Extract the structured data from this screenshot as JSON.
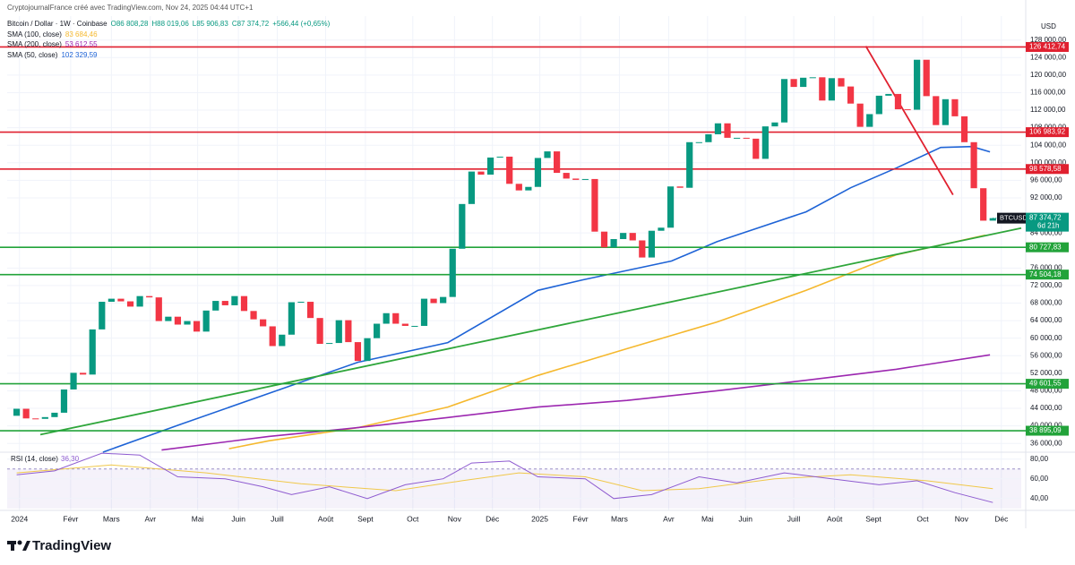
{
  "chart_data": {
    "type": "candlestick",
    "credit": "CryptojournalFrance créé avec TradingView.com, Nov 24, 2025 04:44 UTC+1",
    "title": "Bitcoin / Dollar · 1W · Coinbase",
    "ohlc_labels": [
      "O86 808,28",
      "H88 019,06",
      "L85 906,83",
      "C87 374,72"
    ],
    "change_label": "+566,44 (+0,65%)",
    "currency": "USD",
    "brand": "TradingView",
    "up_color": "#089981",
    "down_color": "#f23645",
    "grid": true,
    "open": [
      42300,
      43900,
      41700,
      41600,
      42000,
      43000,
      48300,
      52100,
      51700,
      62000,
      68300,
      69000,
      68400,
      67200,
      69600,
      69300,
      63900,
      64900,
      63100,
      63900,
      61500,
      66300,
      68500,
      67500,
      69600,
      66200,
      64300,
      62700,
      58200,
      60800,
      68200,
      68300,
      64600,
      58700,
      58900,
      64100,
      59100,
      54800,
      60000,
      63300,
      65700,
      63300,
      62800,
      62800,
      69000,
      68000,
      69400,
      80400,
      90600,
      98000,
      97300,
      101200,
      101400,
      95200,
      93700,
      94500,
      101100,
      102600,
      97700,
      96400,
      96100,
      96300,
      84300,
      80700,
      82600,
      84000,
      82300,
      78400,
      84500,
      85200,
      94600,
      94300,
      104700,
      104700,
      106500,
      109000,
      105700,
      105700,
      105500,
      100900,
      108300,
      109200,
      119100,
      117300,
      119400,
      119500,
      114200,
      119300,
      117400,
      113500,
      108200,
      111100,
      115300,
      115700,
      112200,
      112100,
      123500,
      115200,
      108600,
      114500,
      110600,
      104700,
      94200,
      86808.28
    ],
    "close": [
      43900,
      41700,
      41600,
      42000,
      43000,
      48300,
      52100,
      51700,
      62000,
      68300,
      69000,
      68400,
      67200,
      69600,
      69300,
      63900,
      64900,
      63100,
      63900,
      61500,
      66300,
      68500,
      67500,
      69600,
      66200,
      64300,
      62700,
      58200,
      60800,
      68200,
      68300,
      64600,
      58700,
      58900,
      64100,
      59100,
      54800,
      60000,
      63300,
      65700,
      63300,
      62800,
      62800,
      69000,
      68000,
      69400,
      80400,
      90600,
      98000,
      97300,
      101200,
      101400,
      95200,
      93700,
      94500,
      101100,
      102600,
      97700,
      96400,
      96100,
      96300,
      84300,
      80700,
      82600,
      84000,
      82300,
      78400,
      84500,
      85200,
      94600,
      94300,
      104700,
      104700,
      106500,
      109000,
      105700,
      105700,
      105500,
      100900,
      108300,
      109200,
      119100,
      117300,
      119400,
      119500,
      114200,
      119300,
      117400,
      113500,
      108200,
      111100,
      115300,
      115700,
      112200,
      112100,
      123500,
      115200,
      108600,
      114500,
      110600,
      104700,
      94200,
      86800,
      87374.72
    ],
    "xlim": [
      -1,
      106
    ],
    "xticks": [
      {
        "value": 0.3,
        "label": "2024"
      },
      {
        "value": 5.7,
        "label": "Févr"
      },
      {
        "value": 10,
        "label": "Mars"
      },
      {
        "value": 14.1,
        "label": "Avr"
      },
      {
        "value": 19.1,
        "label": "Mai"
      },
      {
        "value": 23.4,
        "label": "Juin"
      },
      {
        "value": 27.5,
        "label": "Juill"
      },
      {
        "value": 32.6,
        "label": "Août"
      },
      {
        "value": 36.8,
        "label": "Sept"
      },
      {
        "value": 41.8,
        "label": "Oct"
      },
      {
        "value": 46.2,
        "label": "Nov"
      },
      {
        "value": 50.2,
        "label": "Déc"
      },
      {
        "value": 55.2,
        "label": "2025"
      },
      {
        "value": 59.5,
        "label": "Févr"
      },
      {
        "value": 63.6,
        "label": "Mars"
      },
      {
        "value": 68.8,
        "label": "Avr"
      },
      {
        "value": 72.9,
        "label": "Mai"
      },
      {
        "value": 76.9,
        "label": "Juin"
      },
      {
        "value": 82,
        "label": "Juill"
      },
      {
        "value": 86.3,
        "label": "Août"
      },
      {
        "value": 90.4,
        "label": "Sept"
      },
      {
        "value": 95.6,
        "label": "Oct"
      },
      {
        "value": 99.7,
        "label": "Nov"
      },
      {
        "value": 103.9,
        "label": "Déc"
      }
    ],
    "ylim": [
      34000,
      131000
    ],
    "yticks": [
      {
        "value": 128000,
        "label": "128 000,00"
      },
      {
        "value": 124000,
        "label": "124 000,00"
      },
      {
        "value": 120000,
        "label": "120 000,00"
      },
      {
        "value": 116000,
        "label": "116 000,00"
      },
      {
        "value": 112000,
        "label": "112 000,00"
      },
      {
        "value": 108000,
        "label": "108 000,00"
      },
      {
        "value": 104000,
        "label": "104 000,00"
      },
      {
        "value": 100000,
        "label": "100 000,00"
      },
      {
        "value": 96000,
        "label": "96 000,00"
      },
      {
        "value": 92000,
        "label": "92 000,00"
      },
      {
        "value": 84000,
        "label": "84 000,00"
      },
      {
        "value": 76000,
        "label": "76 000,00"
      },
      {
        "value": 72000,
        "label": "72 000,00"
      },
      {
        "value": 68000,
        "label": "68 000,00"
      },
      {
        "value": 64000,
        "label": "64 000,00"
      },
      {
        "value": 60000,
        "label": "60 000,00"
      },
      {
        "value": 56000,
        "label": "56 000,00"
      },
      {
        "value": 52000,
        "label": "52 000,00"
      },
      {
        "value": 48000,
        "label": "48 000,00"
      },
      {
        "value": 44000,
        "label": "44 000,00"
      },
      {
        "value": 40000,
        "label": "40 000,00"
      },
      {
        "value": 36000,
        "label": "36 000,00"
      }
    ],
    "indicators": [
      {
        "name": "SMA (100, close)",
        "value_label": "83 684,46",
        "color": "#f5b82e",
        "x": [
          22.4,
          26.6,
          36,
          45.5,
          55,
          64.4,
          73.9,
          83.3,
          92.8,
          102.2
        ],
        "values": [
          34800,
          36600,
          39600,
          44300,
          51500,
          57600,
          63700,
          70900,
          79000,
          83500
        ]
      },
      {
        "name": "SMA (200, close)",
        "value_label": "53 612,55",
        "color": "#9c27b0",
        "x": [
          15.3,
          26.6,
          36,
          45.5,
          55,
          64.4,
          73.9,
          83.3,
          92.8,
          102.7
        ],
        "values": [
          34500,
          37600,
          39600,
          41900,
          44300,
          45800,
          48000,
          50400,
          52900,
          56200
        ]
      },
      {
        "name": "SMA (50, close)",
        "value_label": "102 329,59",
        "color": "#1e63d6",
        "x": [
          9.1,
          17.1,
          26.6,
          36,
          45.5,
          55,
          59.7,
          69.1,
          73.9,
          83.3,
          88,
          92.8,
          97.5,
          100.8,
          102.7
        ],
        "values": [
          34000,
          40200,
          47400,
          54500,
          59000,
          70900,
          73300,
          77600,
          82000,
          88800,
          94300,
          98800,
          103500,
          103700,
          102500
        ]
      }
    ],
    "levels": [
      {
        "value": 126412.74,
        "label": "126 412,74",
        "color": "#e0202f"
      },
      {
        "value": 106983.92,
        "label": "106 983,92",
        "color": "#e0202f"
      },
      {
        "value": 98578.58,
        "label": "98 578,58",
        "color": "#e0202f"
      },
      {
        "value": 80727.83,
        "label": "80 727,83",
        "color": "#22a33a"
      },
      {
        "value": 74504.18,
        "label": "74 504,18",
        "color": "#22a33a"
      },
      {
        "value": 49601.55,
        "label": "49 601,55",
        "color": "#22a33a"
      },
      {
        "value": 38895.09,
        "label": "38 895,09",
        "color": "#22a33a"
      }
    ],
    "trendlines": [
      {
        "color": "#2fa63b",
        "x": [
          2.5,
          106
        ],
        "values": [
          38000,
          85100
        ]
      },
      {
        "color": "#e0202f",
        "x": [
          89.6,
          98.8
        ],
        "values": [
          126600,
          92700
        ]
      }
    ],
    "last_price": {
      "symbol": "BTCUSD",
      "label": "87 374,72",
      "countdown": "6d 21h"
    },
    "rsi": {
      "name": "RSI (14, close)",
      "value_label": "36,30",
      "color": "#8e5bd0",
      "ma_color": "#f0c84a",
      "ylim": [
        28,
        87
      ],
      "band": [
        30,
        70
      ],
      "yticks": [
        {
          "value": 80,
          "label": "80,00"
        },
        {
          "value": 60,
          "label": "60,00"
        },
        {
          "value": 40,
          "label": "40,00"
        }
      ],
      "x": [
        0,
        4,
        9,
        13,
        17,
        22,
        26,
        29,
        33,
        37,
        41,
        45,
        48,
        52,
        55,
        60,
        63,
        67,
        72,
        76,
        81,
        86,
        91,
        95,
        99,
        103
      ],
      "values": [
        64,
        68,
        86,
        84,
        62,
        60,
        52,
        44,
        52,
        40,
        54,
        60,
        76,
        78,
        62,
        60,
        40,
        44,
        62,
        56,
        66,
        60,
        54,
        58,
        46,
        36
      ],
      "ma_x": [
        0,
        10,
        20,
        30,
        40,
        47,
        53,
        60,
        66,
        72,
        80,
        88,
        96,
        103
      ],
      "ma_values": [
        66,
        74,
        66,
        55,
        48,
        58,
        66,
        62,
        48,
        50,
        60,
        64,
        58,
        50
      ]
    }
  }
}
